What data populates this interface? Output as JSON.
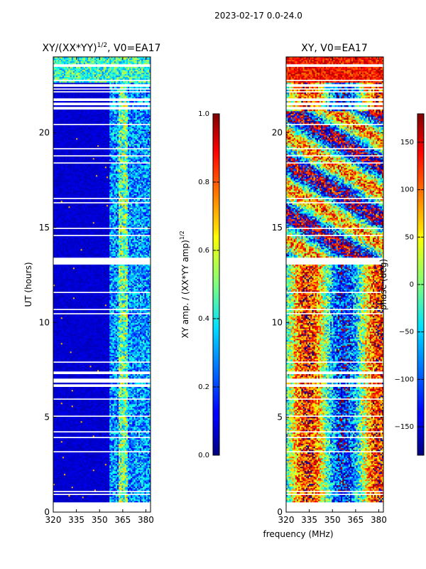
{
  "suptitle": "2023-02-17 0.0-24.0",
  "chart_data": [
    {
      "type": "heatmap",
      "title": "XY/(XX*YY)",
      "title_sup": "1/2",
      "title_suffix": ", V0=EA17",
      "xlabel": "",
      "ylabel": "UT (hours)",
      "xlim": [
        320,
        383
      ],
      "ylim": [
        0,
        24
      ],
      "xticks": [
        320,
        335,
        350,
        365,
        380
      ],
      "yticks": [
        0,
        5,
        10,
        15,
        20
      ],
      "colorbar": {
        "label": "XY amp. / (XX*YY amp)",
        "label_sup": "1/2",
        "range": [
          0.0,
          1.0
        ],
        "ticks": [
          "0.0",
          "0.2",
          "0.4",
          "0.6",
          "0.8",
          "1.0"
        ],
        "colormap": "jet"
      }
    },
    {
      "type": "heatmap",
      "title": "XY, V0=EA17",
      "xlabel": "frequency (MHz)",
      "ylabel": "",
      "xlim": [
        320,
        383
      ],
      "ylim": [
        0,
        24
      ],
      "xticks": [
        320,
        335,
        350,
        365,
        380
      ],
      "yticks": [
        0,
        5,
        10,
        15,
        20
      ],
      "colorbar": {
        "label": "phase (deg)",
        "range": [
          -180,
          180
        ],
        "ticks": [
          "−150",
          "−100",
          "−50",
          "0",
          "50",
          "100",
          "150"
        ],
        "colormap": "jet"
      }
    }
  ]
}
